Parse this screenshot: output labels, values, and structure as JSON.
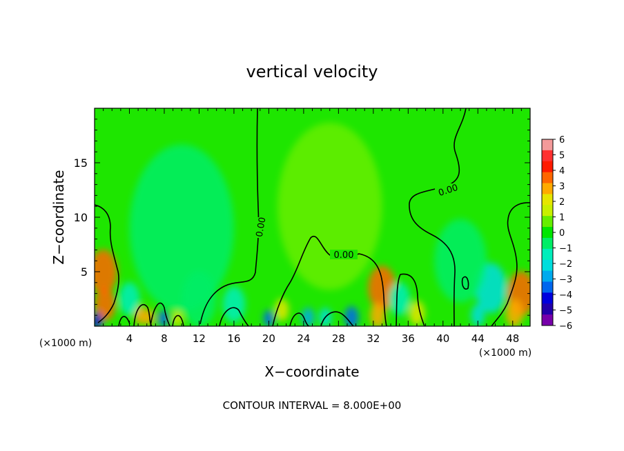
{
  "chart_data": {
    "type": "heatmap",
    "title": "vertical velocity",
    "xlabel": "X−coordinate",
    "ylabel": "Z−coordinate",
    "x_unit_left": "(×1000 m)",
    "x_unit_right": "(×1000 m)",
    "xlim": [
      0,
      50
    ],
    "ylim": [
      0,
      20
    ],
    "x_ticks": [
      "4",
      "8",
      "12",
      "16",
      "20",
      "24",
      "28",
      "32",
      "36",
      "40",
      "44",
      "48"
    ],
    "y_ticks": [
      "5",
      "10",
      "15"
    ],
    "colorbar": {
      "ticks": [
        "6",
        "5",
        "4",
        "3",
        "2",
        "1",
        "0",
        "−1",
        "−2",
        "−3",
        "−4",
        "−5",
        "−6"
      ],
      "range": [
        -6,
        6
      ],
      "colors": [
        "#f49a9a",
        "#ff3030",
        "#ff1a00",
        "#ff6600",
        "#ffaa00",
        "#e6e600",
        "#c8f000",
        "#66ee00",
        "#00e600",
        "#00ee66",
        "#00eebb",
        "#00dddd",
        "#00aaee",
        "#0066ee",
        "#0000dd",
        "#2200aa",
        "#7700aa"
      ]
    },
    "contour_labels": [
      "0.00",
      "0.00",
      "0.00"
    ],
    "annotation": "CONTOUR INTERVAL = 8.000E+00",
    "regions": [
      {
        "x": 1.0,
        "z": 5.0,
        "w": 1.6,
        "value": 3.5
      },
      {
        "x": 1.2,
        "z": 2.0,
        "w": 1.2,
        "value": 4.0
      },
      {
        "x": 0.3,
        "z": 0.5,
        "w": 0.6,
        "value": -4.5
      },
      {
        "x": 5.3,
        "z": 1.0,
        "w": 0.7,
        "value": 3.0
      },
      {
        "x": 6.3,
        "z": 0.8,
        "w": 0.6,
        "value": 3.0
      },
      {
        "x": 7.9,
        "z": 0.7,
        "w": 0.6,
        "value": -4.0
      },
      {
        "x": 9.5,
        "z": 0.7,
        "w": 0.6,
        "value": 2.5
      },
      {
        "x": 4.0,
        "z": 2.5,
        "w": 1.2,
        "value": -1.5
      },
      {
        "x": 20.0,
        "z": 0.7,
        "w": 0.6,
        "value": -4.0
      },
      {
        "x": 21.5,
        "z": 1.5,
        "w": 0.8,
        "value": 2.5
      },
      {
        "x": 24.5,
        "z": 0.8,
        "w": 0.7,
        "value": -3.0
      },
      {
        "x": 26.5,
        "z": 0.8,
        "w": 0.7,
        "value": -2.5
      },
      {
        "x": 29.5,
        "z": 0.8,
        "w": 0.8,
        "value": -3.5
      },
      {
        "x": 16.0,
        "z": 2.0,
        "w": 1.3,
        "value": -1.5
      },
      {
        "x": 33.0,
        "z": 3.5,
        "w": 1.6,
        "value": 3.8
      },
      {
        "x": 32.5,
        "z": 1.0,
        "w": 0.9,
        "value": 3.0
      },
      {
        "x": 37.0,
        "z": 1.2,
        "w": 0.9,
        "value": 2.5
      },
      {
        "x": 35.0,
        "z": 2.5,
        "w": 1.2,
        "value": -1.5
      },
      {
        "x": 45.5,
        "z": 3.5,
        "w": 1.8,
        "value": -2.5
      },
      {
        "x": 44.0,
        "z": 1.0,
        "w": 0.8,
        "value": -2.0
      },
      {
        "x": 49.0,
        "z": 3.0,
        "w": 1.6,
        "value": 3.5
      },
      {
        "x": 48.2,
        "z": 1.2,
        "w": 1.0,
        "value": 3.0
      },
      {
        "x": 12.0,
        "z": 2.5,
        "w": 2.0,
        "value": -0.8
      },
      {
        "x": 42.0,
        "z": 6.0,
        "w": 3.0,
        "value": -0.6
      },
      {
        "x": 27.0,
        "z": 11.0,
        "w": 6.0,
        "value": 0.6
      },
      {
        "x": 10.0,
        "z": 9.0,
        "w": 6.0,
        "value": -0.4
      }
    ]
  }
}
